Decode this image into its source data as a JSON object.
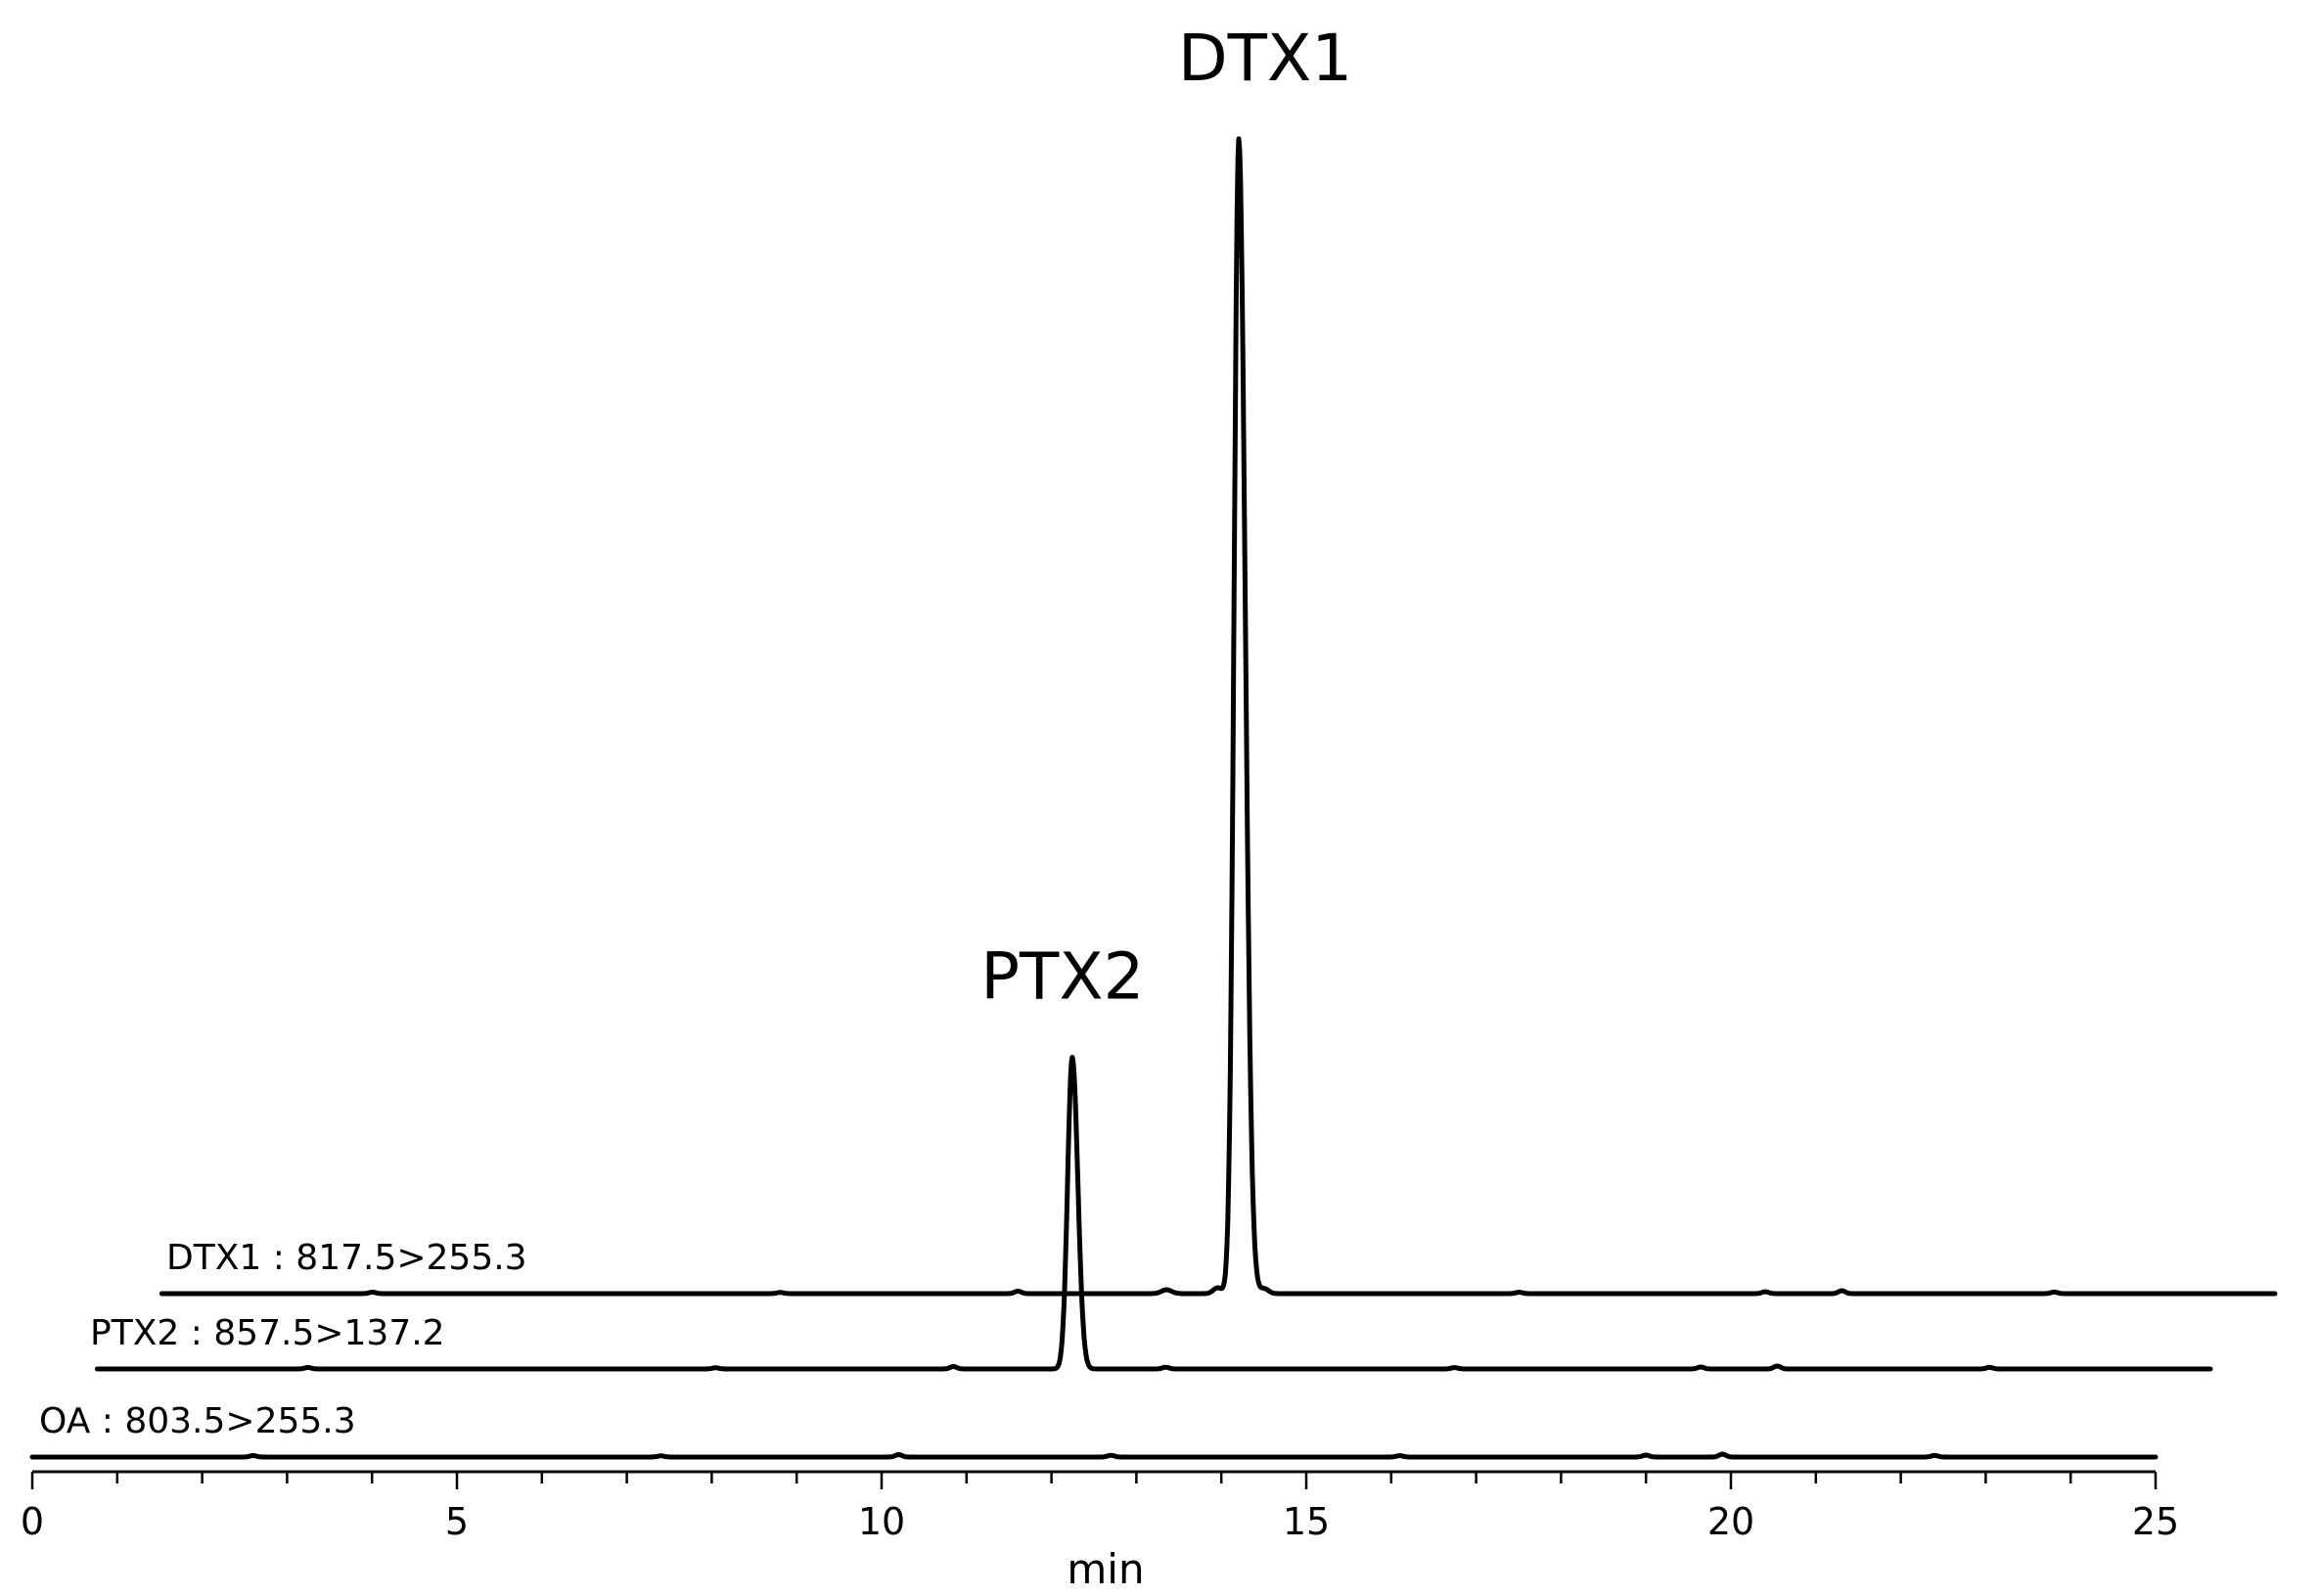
{
  "chart_data": {
    "type": "line",
    "xlabel": "min",
    "xlim": [
      0,
      25
    ],
    "x_ticks": [
      0,
      5,
      10,
      15,
      20,
      25
    ],
    "tick_labels": [
      "0",
      "5",
      "10",
      "15",
      "20",
      "25"
    ],
    "grid": false,
    "series": [
      {
        "name": "OA : 803.5>255.3",
        "x_start": 0,
        "x_end": 25,
        "peaks": []
      },
      {
        "name": "PTX2 : 857.5>137.2",
        "x_start": 0,
        "x_end": 25,
        "peaks": [
          {
            "x": 11.6,
            "relative_height": 0.27,
            "label": "PTX2"
          }
        ]
      },
      {
        "name": "DTX1 : 817.5>255.3",
        "x_start": 0,
        "x_end": 25,
        "peaks": [
          {
            "x": 12.8,
            "relative_height": 1.0,
            "label": "DTX1"
          }
        ]
      }
    ]
  }
}
